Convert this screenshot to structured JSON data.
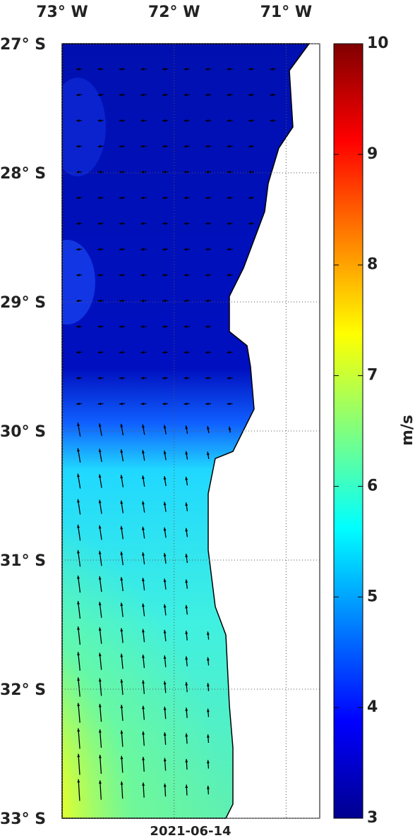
{
  "map": {
    "lon_ticks": [
      {
        "value": -73,
        "label": "73° W"
      },
      {
        "value": -72,
        "label": "72° W"
      },
      {
        "value": -71,
        "label": "71° W"
      }
    ],
    "lon_lim": [
      -73,
      -70.7
    ],
    "lat_ticks": [
      {
        "value": -27,
        "label": "27° S"
      },
      {
        "value": -28,
        "label": "28° S"
      },
      {
        "value": -29,
        "label": "29° S"
      },
      {
        "value": -30,
        "label": "30° S"
      },
      {
        "value": -31,
        "label": "31° S"
      },
      {
        "value": -32,
        "label": "32° S"
      },
      {
        "value": -33,
        "label": "33° S"
      }
    ],
    "lat_lim": [
      -33,
      -27
    ],
    "colorbar": {
      "lim": [
        3,
        10
      ],
      "ticks": [
        3,
        4,
        5,
        6,
        7,
        8,
        9,
        10
      ],
      "label": "m/s"
    },
    "date": "2021-06-14"
  }
}
